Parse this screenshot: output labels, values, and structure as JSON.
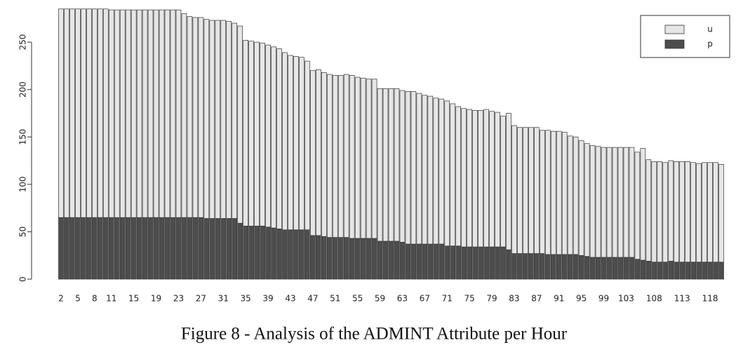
{
  "chart_data": {
    "type": "stacked_bar",
    "caption": "Figure 8 - Analysis of the ADMINT Attribute per Hour",
    "categories": [
      "2",
      null,
      null,
      "5",
      null,
      null,
      "8",
      null,
      null,
      "11",
      null,
      null,
      null,
      "15",
      null,
      null,
      null,
      "19",
      null,
      null,
      null,
      "23",
      null,
      null,
      null,
      "27",
      null,
      null,
      null,
      "31",
      null,
      null,
      null,
      "35",
      null,
      null,
      null,
      "39",
      null,
      null,
      null,
      "43",
      null,
      null,
      null,
      "47",
      null,
      null,
      null,
      "51",
      null,
      null,
      null,
      "55",
      null,
      null,
      null,
      "59",
      null,
      null,
      null,
      "63",
      null,
      null,
      null,
      "67",
      null,
      null,
      null,
      "71",
      null,
      null,
      null,
      "75",
      null,
      null,
      null,
      "79",
      null,
      null,
      null,
      "83",
      null,
      null,
      null,
      "87",
      null,
      null,
      null,
      "91",
      null,
      null,
      null,
      "95",
      null,
      null,
      null,
      "99",
      null,
      null,
      null,
      "103",
      null,
      null,
      null,
      null,
      "108",
      null,
      null,
      null,
      null,
      "113",
      null,
      null,
      null,
      null,
      "118",
      null,
      null
    ],
    "series": [
      {
        "name": "p",
        "color": "#4d4d4d",
        "values": [
          65,
          65,
          65,
          65,
          65,
          65,
          65,
          65,
          65,
          65,
          65,
          65,
          65,
          65,
          65,
          65,
          65,
          65,
          65,
          65,
          65,
          65,
          65,
          65,
          65,
          65,
          64,
          64,
          64,
          64,
          64,
          64,
          59,
          56,
          56,
          56,
          56,
          55,
          54,
          53,
          52,
          52,
          52,
          52,
          52,
          46,
          46,
          45,
          44,
          44,
          44,
          44,
          43,
          43,
          43,
          43,
          43,
          40,
          40,
          40,
          40,
          39,
          37,
          37,
          37,
          37,
          37,
          37,
          37,
          35,
          35,
          35,
          34,
          34,
          34,
          34,
          34,
          34,
          34,
          34,
          31,
          27,
          27,
          27,
          27,
          27,
          27,
          26,
          26,
          26,
          26,
          26,
          26,
          25,
          24,
          23,
          23,
          23,
          23,
          23,
          23,
          23,
          23,
          21,
          20,
          19,
          18,
          18,
          18,
          19,
          18,
          18,
          18,
          18,
          18,
          18,
          18,
          18,
          18
        ]
      },
      {
        "name": "u",
        "color": "#e6e6e6",
        "values": [
          220,
          220,
          220,
          220,
          220,
          220,
          220,
          220,
          220,
          219,
          219,
          219,
          219,
          219,
          219,
          219,
          219,
          219,
          219,
          219,
          219,
          219,
          215,
          212,
          211,
          211,
          210,
          209,
          209,
          209,
          208,
          206,
          208,
          196,
          195,
          194,
          193,
          192,
          191,
          190,
          187,
          184,
          183,
          182,
          178,
          174,
          175,
          173,
          172,
          171,
          171,
          172,
          172,
          170,
          169,
          168,
          168,
          161,
          161,
          161,
          161,
          160,
          161,
          161,
          159,
          157,
          156,
          154,
          153,
          153,
          150,
          147,
          146,
          145,
          144,
          144,
          145,
          143,
          142,
          138,
          144,
          135,
          133,
          133,
          133,
          133,
          130,
          131,
          130,
          130,
          129,
          125,
          124,
          121,
          119,
          118,
          117,
          116,
          116,
          116,
          116,
          116,
          116,
          113,
          118,
          107,
          106,
          106,
          105,
          106,
          106,
          106,
          106,
          105,
          104,
          105,
          105,
          105,
          103
        ]
      }
    ],
    "ylim": [
      0,
      290
    ],
    "yticks": [
      0,
      50,
      100,
      150,
      200,
      250
    ],
    "legend": "top-right"
  }
}
